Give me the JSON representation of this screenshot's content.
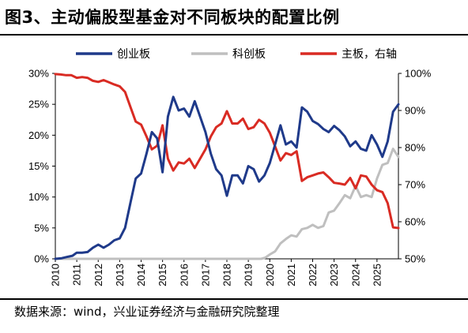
{
  "title": "图3、主动偏股型基金对不同板块的配置比例",
  "source": "数据来源：wind，兴业证券经济与金融研究院整理",
  "chart_data": {
    "type": "line",
    "legend_position": "top",
    "grid": false,
    "x_ticks": [
      "2010",
      "2011",
      "2012",
      "2013",
      "2014",
      "2015",
      "2016",
      "2017",
      "2018",
      "2019",
      "2020",
      "2021",
      "2022",
      "2023",
      "2024",
      "2025"
    ],
    "x_range": [
      2010.0,
      2026.0
    ],
    "y_left": {
      "ticks": [
        "0%",
        "5%",
        "10%",
        "15%",
        "20%",
        "25%",
        "30%"
      ],
      "range": [
        0,
        30
      ]
    },
    "y_right": {
      "ticks": [
        "50%",
        "60%",
        "70%",
        "80%",
        "90%",
        "100%"
      ],
      "range": [
        50,
        100
      ]
    },
    "series": [
      {
        "name": "创业板",
        "axis": "left",
        "color": "#1f3a8a",
        "points": [
          [
            2010.0,
            0
          ],
          [
            2010.3,
            0.1
          ],
          [
            2010.55,
            0.3
          ],
          [
            2010.8,
            0.5
          ],
          [
            2011.0,
            1.0
          ],
          [
            2011.25,
            1.0
          ],
          [
            2011.5,
            1.1
          ],
          [
            2011.75,
            1.8
          ],
          [
            2012.0,
            2.3
          ],
          [
            2012.25,
            1.8
          ],
          [
            2012.5,
            2.3
          ],
          [
            2012.75,
            3.0
          ],
          [
            2013.0,
            3.3
          ],
          [
            2013.25,
            5.0
          ],
          [
            2013.5,
            9.0
          ],
          [
            2013.75,
            13.0
          ],
          [
            2014.0,
            13.8
          ],
          [
            2014.25,
            17.0
          ],
          [
            2014.5,
            20.5
          ],
          [
            2014.75,
            19.5
          ],
          [
            2015.0,
            14.0
          ],
          [
            2015.25,
            23.0
          ],
          [
            2015.5,
            26.2
          ],
          [
            2015.75,
            24.0
          ],
          [
            2016.0,
            24.3
          ],
          [
            2016.25,
            23.0
          ],
          [
            2016.5,
            25.5
          ],
          [
            2016.75,
            23.0
          ],
          [
            2017.0,
            20.5
          ],
          [
            2017.25,
            17.0
          ],
          [
            2017.5,
            14.5
          ],
          [
            2017.75,
            13.5
          ],
          [
            2018.0,
            10.2
          ],
          [
            2018.25,
            13.5
          ],
          [
            2018.5,
            13.5
          ],
          [
            2018.75,
            12.2
          ],
          [
            2019.0,
            15.0
          ],
          [
            2019.25,
            14.5
          ],
          [
            2019.5,
            12.5
          ],
          [
            2019.75,
            13.5
          ],
          [
            2020.0,
            15.5
          ],
          [
            2020.25,
            18.5
          ],
          [
            2020.5,
            21.6
          ],
          [
            2020.75,
            18.5
          ],
          [
            2021.0,
            19.0
          ],
          [
            2021.25,
            18.0
          ],
          [
            2021.5,
            24.5
          ],
          [
            2021.75,
            23.8
          ],
          [
            2022.0,
            22.3
          ],
          [
            2022.25,
            21.8
          ],
          [
            2022.5,
            21.0
          ],
          [
            2022.75,
            20.5
          ],
          [
            2023.0,
            21.5
          ],
          [
            2023.25,
            20.8
          ],
          [
            2023.5,
            19.8
          ],
          [
            2023.75,
            18.2
          ],
          [
            2024.0,
            19.0
          ],
          [
            2024.25,
            17.8
          ],
          [
            2024.5,
            17.5
          ],
          [
            2024.75,
            20.0
          ],
          [
            2025.0,
            18.5
          ],
          [
            2025.25,
            16.5
          ],
          [
            2025.5,
            19.0
          ],
          [
            2025.75,
            23.8
          ],
          [
            2026.0,
            25.0
          ]
        ]
      },
      {
        "name": "科创板",
        "axis": "left",
        "color": "#bfbfbf",
        "points": [
          [
            2010.0,
            0
          ],
          [
            2019.6,
            0
          ],
          [
            2019.8,
            0.2
          ],
          [
            2020.0,
            0.7
          ],
          [
            2020.25,
            1.2
          ],
          [
            2020.5,
            2.5
          ],
          [
            2020.75,
            3.2
          ],
          [
            2021.0,
            3.8
          ],
          [
            2021.25,
            3.6
          ],
          [
            2021.5,
            4.8
          ],
          [
            2021.75,
            5.0
          ],
          [
            2022.0,
            5.5
          ],
          [
            2022.25,
            5.0
          ],
          [
            2022.5,
            5.3
          ],
          [
            2022.75,
            7.5
          ],
          [
            2023.0,
            7.8
          ],
          [
            2023.25,
            9.0
          ],
          [
            2023.5,
            10.3
          ],
          [
            2023.75,
            9.8
          ],
          [
            2024.0,
            11.8
          ],
          [
            2024.25,
            10.0
          ],
          [
            2024.5,
            10.3
          ],
          [
            2024.75,
            10.0
          ],
          [
            2025.0,
            13.0
          ],
          [
            2025.25,
            15.2
          ],
          [
            2025.5,
            15.5
          ],
          [
            2025.75,
            17.8
          ],
          [
            2026.0,
            16.5
          ]
        ]
      },
      {
        "name": "主板，右轴",
        "axis": "right",
        "color": "#d92b23",
        "points": [
          [
            2010.0,
            99.8
          ],
          [
            2010.25,
            99.7
          ],
          [
            2010.5,
            99.5
          ],
          [
            2010.75,
            99.5
          ],
          [
            2011.0,
            98.8
          ],
          [
            2011.25,
            99.0
          ],
          [
            2011.5,
            98.8
          ],
          [
            2011.75,
            98.0
          ],
          [
            2012.0,
            97.7
          ],
          [
            2012.25,
            98.2
          ],
          [
            2012.5,
            97.6
          ],
          [
            2012.75,
            97.0
          ],
          [
            2013.0,
            96.5
          ],
          [
            2013.25,
            95.0
          ],
          [
            2013.5,
            91.0
          ],
          [
            2013.75,
            87.0
          ],
          [
            2014.0,
            86.2
          ],
          [
            2014.25,
            83.0
          ],
          [
            2014.5,
            79.5
          ],
          [
            2014.75,
            80.5
          ],
          [
            2015.0,
            86.0
          ],
          [
            2015.25,
            77.0
          ],
          [
            2015.5,
            73.8
          ],
          [
            2015.75,
            76.0
          ],
          [
            2016.0,
            75.7
          ],
          [
            2016.25,
            77.0
          ],
          [
            2016.5,
            74.5
          ],
          [
            2016.75,
            77.0
          ],
          [
            2017.0,
            79.5
          ],
          [
            2017.25,
            83.0
          ],
          [
            2017.5,
            85.5
          ],
          [
            2017.75,
            86.5
          ],
          [
            2018.0,
            89.8
          ],
          [
            2018.25,
            86.5
          ],
          [
            2018.5,
            86.5
          ],
          [
            2018.75,
            87.8
          ],
          [
            2019.0,
            85.0
          ],
          [
            2019.25,
            85.5
          ],
          [
            2019.5,
            87.5
          ],
          [
            2019.75,
            86.5
          ],
          [
            2020.0,
            84.0
          ],
          [
            2020.25,
            80.3
          ],
          [
            2020.5,
            76.5
          ],
          [
            2020.75,
            78.5
          ],
          [
            2021.0,
            78.0
          ],
          [
            2021.25,
            79.0
          ],
          [
            2021.5,
            71.0
          ],
          [
            2021.75,
            72.0
          ],
          [
            2022.0,
            72.5
          ],
          [
            2022.25,
            73.0
          ],
          [
            2022.5,
            73.3
          ],
          [
            2022.75,
            72.0
          ],
          [
            2023.0,
            70.5
          ],
          [
            2023.25,
            70.3
          ],
          [
            2023.5,
            70.0
          ],
          [
            2023.75,
            71.8
          ],
          [
            2024.0,
            69.0
          ],
          [
            2024.25,
            72.5
          ],
          [
            2024.5,
            72.2
          ],
          [
            2024.75,
            70.0
          ],
          [
            2025.0,
            68.5
          ],
          [
            2025.25,
            68.0
          ],
          [
            2025.5,
            65.0
          ],
          [
            2025.75,
            58.5
          ],
          [
            2026.0,
            58.3
          ]
        ]
      }
    ]
  }
}
